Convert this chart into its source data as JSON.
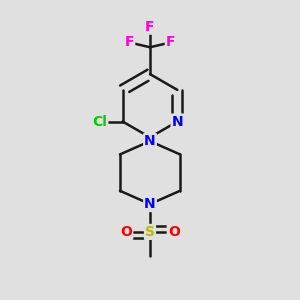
{
  "background_color": "#e0e0e0",
  "bond_color": "#1a1a1a",
  "bond_width": 1.8,
  "atom_colors": {
    "F": "#ff00dd",
    "Cl": "#00cc00",
    "N": "#0000ff",
    "S": "#bbbb00",
    "O": "#ff0000",
    "C": "#1a1a1a"
  },
  "font_size_atom": 10,
  "figsize": [
    3.0,
    3.0
  ],
  "dpi": 100,
  "xlim": [
    0.15,
    0.85
  ],
  "ylim": [
    0.03,
    0.97
  ]
}
